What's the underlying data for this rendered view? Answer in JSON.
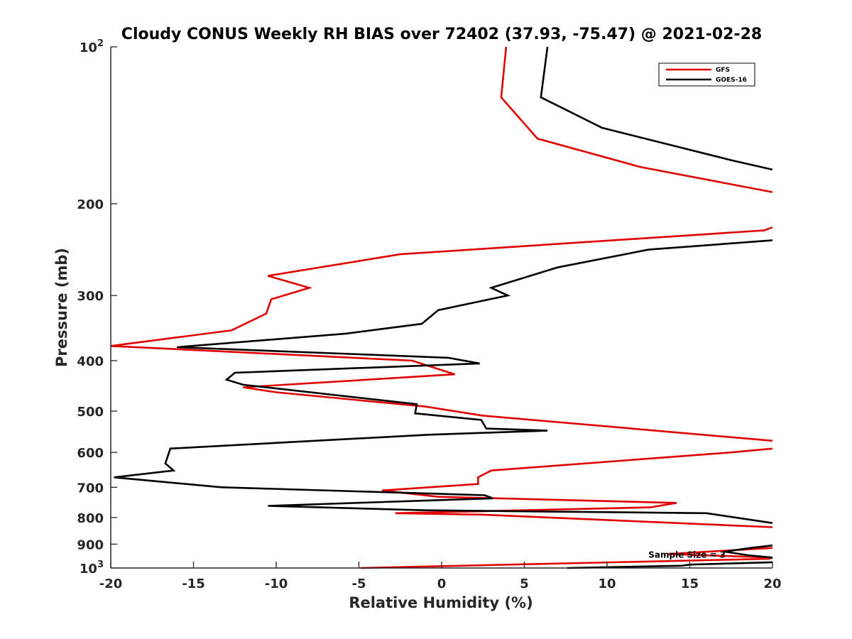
{
  "chart_data": {
    "type": "line",
    "title": "Cloudy CONUS Weekly RH BIAS over 72402 (37.93, -75.47) @ 2021-02-28",
    "xlabel": "Relative Humidity (%)",
    "ylabel": "Pressure (mb)",
    "xlim": [
      -20,
      20
    ],
    "ylim": [
      100,
      1000
    ],
    "y_scale": "log",
    "y_reversed": true,
    "grid": false,
    "legend_position": "top-right",
    "x_ticks": [
      "-20",
      "-15",
      "-10",
      "-5",
      "0",
      "5",
      "10",
      "15",
      "20"
    ],
    "y_ticks": [
      {
        "value": 100,
        "base": "10",
        "exp": "2"
      },
      {
        "value": 200,
        "label": "200"
      },
      {
        "value": 300,
        "label": "300"
      },
      {
        "value": 400,
        "label": "400"
      },
      {
        "value": 500,
        "label": "500"
      },
      {
        "value": 600,
        "label": "600"
      },
      {
        "value": 700,
        "label": "700"
      },
      {
        "value": 800,
        "label": "800"
      },
      {
        "value": 900,
        "label": "900"
      },
      {
        "value": 1000,
        "base": "10",
        "exp": "3"
      }
    ],
    "series": [
      {
        "name": "GFS",
        "color": "#e00000",
        "points": [
          [
            3.9,
            100
          ],
          [
            3.6,
            125
          ],
          [
            5.8,
            150
          ],
          [
            12.0,
            170
          ],
          [
            20.0,
            190
          ],
          null,
          [
            20.0,
            222
          ],
          [
            19.5,
            225
          ],
          [
            -2.5,
            250
          ],
          [
            -10.5,
            275
          ],
          [
            -8.0,
            290
          ],
          [
            -10.3,
            305
          ],
          [
            -10.6,
            325
          ],
          [
            -12.7,
            350
          ],
          [
            -20.0,
            375
          ],
          [
            -1.8,
            400
          ],
          [
            0.8,
            425
          ],
          [
            -12.0,
            450
          ],
          [
            -10.0,
            460
          ],
          [
            -1.0,
            490
          ],
          [
            2.5,
            510
          ],
          [
            20.0,
            570
          ],
          null,
          [
            20.0,
            590
          ],
          [
            17.5,
            600
          ],
          [
            3.0,
            650
          ],
          [
            2.2,
            670
          ],
          [
            2.2,
            690
          ],
          [
            -3.6,
            710
          ],
          [
            -0.2,
            730
          ],
          [
            14.2,
            750
          ],
          [
            12.6,
            765
          ],
          [
            -2.8,
            785
          ],
          [
            2.5,
            790
          ],
          [
            20.0,
            835
          ],
          null,
          [
            20.0,
            915
          ],
          [
            13.7,
            940
          ],
          [
            17.8,
            950
          ],
          [
            20.0,
            955
          ],
          [
            19.8,
            960
          ],
          [
            -4.9,
            1000
          ]
        ]
      },
      {
        "name": "GOES-16",
        "color": "#000000",
        "points": [
          [
            6.4,
            100
          ],
          [
            6.0,
            125
          ],
          [
            9.7,
            143
          ],
          [
            17.5,
            165
          ],
          [
            20.0,
            172
          ],
          null,
          [
            20.0,
            235
          ],
          [
            12.5,
            245
          ],
          [
            7.0,
            265
          ],
          [
            3.0,
            290
          ],
          [
            4.0,
            300
          ],
          [
            -0.2,
            320
          ],
          [
            -1.2,
            340
          ],
          [
            -5.8,
            355
          ],
          [
            -16.0,
            377
          ],
          [
            0.4,
            395
          ],
          [
            2.3,
            405
          ],
          [
            -12.5,
            422
          ],
          [
            -13.0,
            435
          ],
          [
            -12.0,
            445
          ],
          [
            -1.5,
            485
          ],
          [
            -1.6,
            505
          ],
          [
            2.4,
            520
          ],
          [
            2.7,
            540
          ],
          [
            6.4,
            545
          ],
          [
            -0.8,
            555
          ],
          [
            -16.4,
            590
          ],
          [
            -16.7,
            630
          ],
          [
            -16.2,
            650
          ],
          [
            -19.8,
            670
          ],
          [
            -13.3,
            700
          ],
          [
            2.6,
            725
          ],
          [
            3.1,
            735
          ],
          [
            -10.5,
            760
          ],
          [
            -1.0,
            775
          ],
          [
            16.0,
            785
          ],
          [
            20.0,
            820
          ],
          null,
          [
            20.0,
            905
          ],
          [
            18.7,
            915
          ],
          [
            17.1,
            930
          ],
          [
            18.5,
            945
          ],
          [
            20.0,
            955
          ],
          null,
          [
            20.0,
            975
          ],
          [
            15.0,
            985
          ],
          [
            14.5,
            990
          ],
          [
            7.6,
            1000
          ]
        ]
      }
    ],
    "annotations": [
      {
        "text": "Sample Size = 3",
        "x": 12.5,
        "y": 943
      }
    ]
  }
}
